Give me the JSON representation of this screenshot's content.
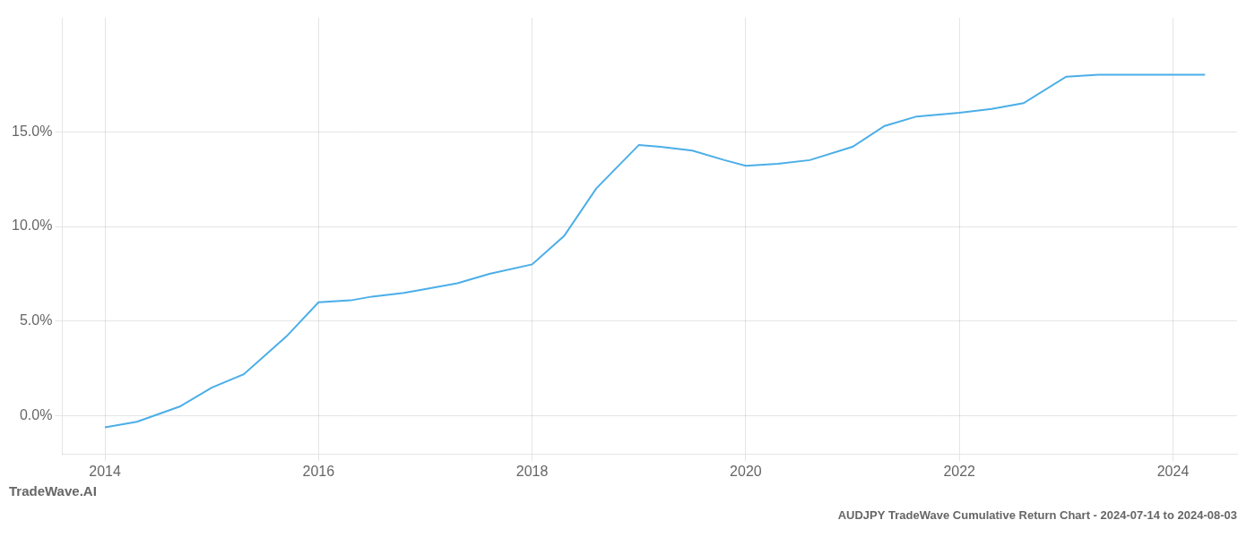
{
  "chart_data": {
    "type": "line",
    "title": "AUDJPY TradeWave Cumulative Return Chart - 2024-07-14 to 2024-08-03",
    "annotations": [
      "TradeWave.AI"
    ],
    "x": [
      2014.0,
      2014.3,
      2014.7,
      2015.0,
      2015.3,
      2015.7,
      2016.0,
      2016.3,
      2016.5,
      2016.8,
      2017.0,
      2017.3,
      2017.6,
      2018.0,
      2018.3,
      2018.6,
      2019.0,
      2019.2,
      2019.5,
      2019.8,
      2020.0,
      2020.3,
      2020.6,
      2021.0,
      2021.3,
      2021.6,
      2022.0,
      2022.3,
      2022.6,
      2023.0,
      2023.3,
      2023.6,
      2024.0,
      2024.3
    ],
    "values": [
      -0.6,
      -0.3,
      0.5,
      1.5,
      2.2,
      4.2,
      6.0,
      6.1,
      6.3,
      6.5,
      6.7,
      7.0,
      7.5,
      8.0,
      9.5,
      12.0,
      14.3,
      14.2,
      14.0,
      13.5,
      13.2,
      13.3,
      13.5,
      14.2,
      15.3,
      15.8,
      16.0,
      16.2,
      16.5,
      17.9,
      18.0,
      18.0,
      18.0,
      18.0
    ],
    "color": "#4baee8",
    "xlim": [
      2013.6,
      2024.6
    ],
    "xticks": [
      2014,
      2016,
      2018,
      2020,
      2022,
      2024
    ],
    "ylim": [
      -2.0,
      21.0
    ],
    "yticks": [
      {
        "value": 0.0,
        "label": "0.0%"
      },
      {
        "value": 5.0,
        "label": "5.0%"
      },
      {
        "value": 10.0,
        "label": "10.0%"
      },
      {
        "value": 15.0,
        "label": "15.0%"
      }
    ],
    "grid": true
  }
}
